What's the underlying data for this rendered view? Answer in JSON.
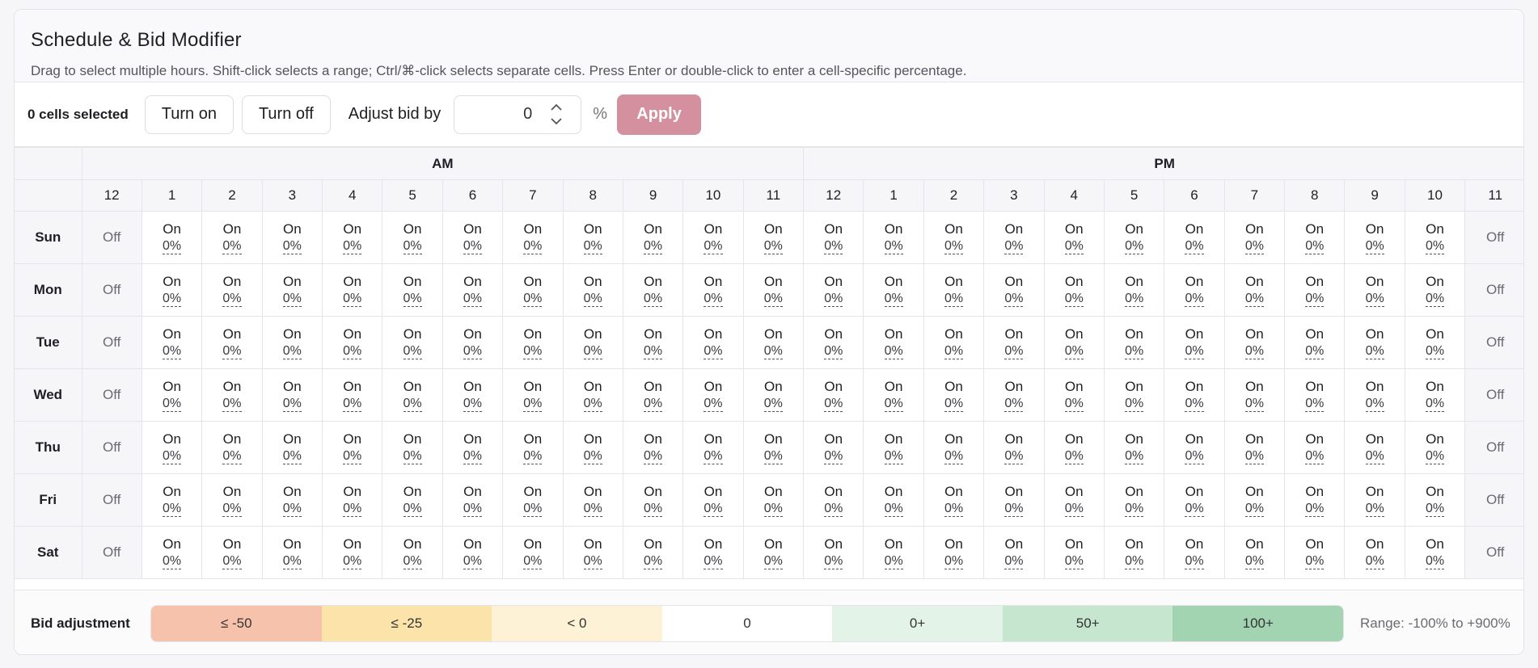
{
  "header": {
    "title": "Schedule & Bid Modifier",
    "subtitle": "Drag to select multiple hours. Shift-click selects a range; Ctrl/⌘-click selects separate cells. Press Enter or double-click to enter a cell-specific percentage."
  },
  "toolbar": {
    "selected_count": "0 cells selected",
    "turn_on_label": "Turn on",
    "turn_off_label": "Turn off",
    "adjust_label": "Adjust bid by",
    "adjust_value": "0",
    "percent_sign": "%",
    "apply_label": "Apply"
  },
  "grid": {
    "am_label": "AM",
    "pm_label": "PM",
    "hours": [
      "12",
      "1",
      "2",
      "3",
      "4",
      "5",
      "6",
      "7",
      "8",
      "9",
      "10",
      "11",
      "12",
      "1",
      "2",
      "3",
      "4",
      "5",
      "6",
      "7",
      "8",
      "9",
      "10",
      "11"
    ],
    "rows": [
      {
        "day": "Sun",
        "cells": [
          "Off",
          "On",
          "On",
          "On",
          "On",
          "On",
          "On",
          "On",
          "On",
          "On",
          "On",
          "On",
          "On",
          "On",
          "On",
          "On",
          "On",
          "On",
          "On",
          "On",
          "On",
          "On",
          "On",
          "Off"
        ]
      },
      {
        "day": "Mon",
        "cells": [
          "Off",
          "On",
          "On",
          "On",
          "On",
          "On",
          "On",
          "On",
          "On",
          "On",
          "On",
          "On",
          "On",
          "On",
          "On",
          "On",
          "On",
          "On",
          "On",
          "On",
          "On",
          "On",
          "On",
          "Off"
        ]
      },
      {
        "day": "Tue",
        "cells": [
          "Off",
          "On",
          "On",
          "On",
          "On",
          "On",
          "On",
          "On",
          "On",
          "On",
          "On",
          "On",
          "On",
          "On",
          "On",
          "On",
          "On",
          "On",
          "On",
          "On",
          "On",
          "On",
          "On",
          "Off"
        ]
      },
      {
        "day": "Wed",
        "cells": [
          "Off",
          "On",
          "On",
          "On",
          "On",
          "On",
          "On",
          "On",
          "On",
          "On",
          "On",
          "On",
          "On",
          "On",
          "On",
          "On",
          "On",
          "On",
          "On",
          "On",
          "On",
          "On",
          "On",
          "Off"
        ]
      },
      {
        "day": "Thu",
        "cells": [
          "Off",
          "On",
          "On",
          "On",
          "On",
          "On",
          "On",
          "On",
          "On",
          "On",
          "On",
          "On",
          "On",
          "On",
          "On",
          "On",
          "On",
          "On",
          "On",
          "On",
          "On",
          "On",
          "On",
          "Off"
        ]
      },
      {
        "day": "Fri",
        "cells": [
          "Off",
          "On",
          "On",
          "On",
          "On",
          "On",
          "On",
          "On",
          "On",
          "On",
          "On",
          "On",
          "On",
          "On",
          "On",
          "On",
          "On",
          "On",
          "On",
          "On",
          "On",
          "On",
          "On",
          "Off"
        ]
      },
      {
        "day": "Sat",
        "cells": [
          "Off",
          "On",
          "On",
          "On",
          "On",
          "On",
          "On",
          "On",
          "On",
          "On",
          "On",
          "On",
          "On",
          "On",
          "On",
          "On",
          "On",
          "On",
          "On",
          "On",
          "On",
          "On",
          "On",
          "Off"
        ]
      }
    ],
    "on_percent": "0%"
  },
  "legend": {
    "label": "Bid adjustment",
    "segments": [
      {
        "label": "≤ -50",
        "color": "#f7c2ab"
      },
      {
        "label": "≤ -25",
        "color": "#fbe3a9"
      },
      {
        "label": "< 0",
        "color": "#fdf2d6"
      },
      {
        "label": "0",
        "color": "#ffffff"
      },
      {
        "label": "0+",
        "color": "#e4f3e8"
      },
      {
        "label": "50+",
        "color": "#c6e6d0"
      },
      {
        "label": "100+",
        "color": "#a2d4b2"
      }
    ],
    "range": "Range: -100% to +900%"
  },
  "colors": {
    "apply_bg": "#d4909f",
    "header_bg": "#f9f9fb"
  }
}
